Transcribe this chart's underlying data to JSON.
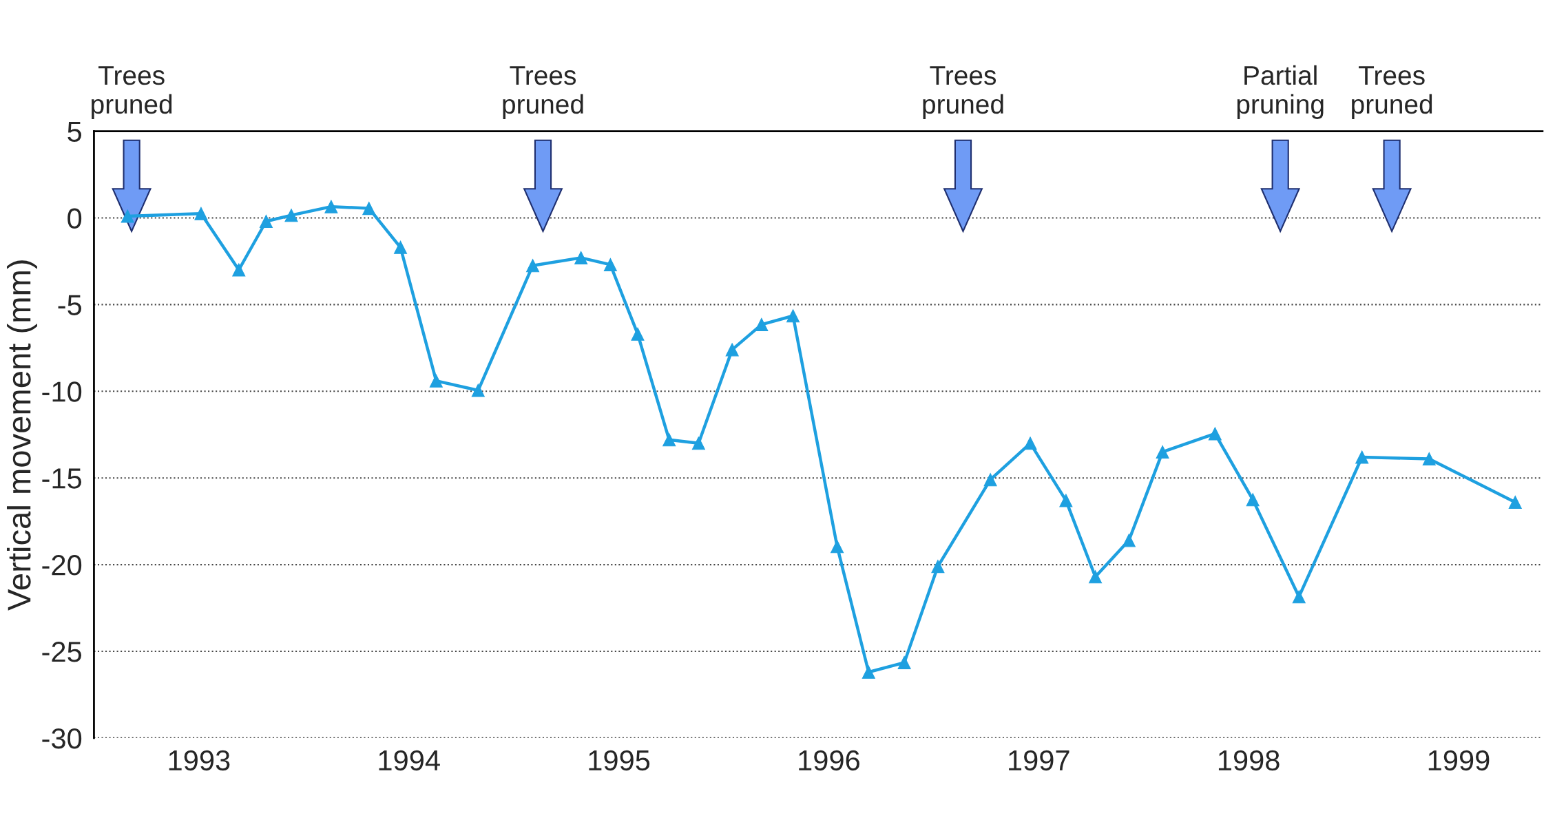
{
  "chart_data": {
    "type": "line",
    "ylabel": "Vertical movement (mm)",
    "xlim": [
      1993,
      1999.9
    ],
    "xticks": [
      {
        "value": 1993.5,
        "label": "1993"
      },
      {
        "value": 1994.5,
        "label": "1994"
      },
      {
        "value": 1995.5,
        "label": "1995"
      },
      {
        "value": 1996.5,
        "label": "1996"
      },
      {
        "value": 1997.5,
        "label": "1997"
      },
      {
        "value": 1998.5,
        "label": "1998"
      },
      {
        "value": 1999.5,
        "label": "1999"
      }
    ],
    "ylim": [
      -30,
      5
    ],
    "yticks": [
      -30,
      -25,
      -20,
      -15,
      -10,
      -5,
      0,
      5
    ],
    "grid": "y",
    "marker": "triangle",
    "line_style": "solid",
    "series": [
      {
        "color": "#1ea0e0",
        "x": [
          1993.16,
          1993.51,
          1993.69,
          1993.82,
          1993.94,
          1994.13,
          1994.31,
          1994.46,
          1994.63,
          1994.83,
          1995.09,
          1995.32,
          1995.46,
          1995.59,
          1995.74,
          1995.88,
          1996.04,
          1996.18,
          1996.33,
          1996.54,
          1996.69,
          1996.86,
          1997.02,
          1997.27,
          1997.46,
          1997.63,
          1997.77,
          1997.93,
          1998.09,
          1998.34,
          1998.52,
          1998.74,
          1999.04,
          1999.36,
          1999.77
        ],
        "values": [
          0.1,
          0.25,
          -3.0,
          -0.2,
          0.15,
          0.65,
          0.55,
          -1.7,
          -9.4,
          -9.95,
          -2.75,
          -2.3,
          -2.7,
          -6.7,
          -12.8,
          -13.0,
          -7.6,
          -6.15,
          -5.65,
          -18.95,
          -26.2,
          -25.65,
          -20.1,
          -15.1,
          -13.0,
          -16.3,
          -20.7,
          -18.6,
          -13.5,
          -12.45,
          -16.25,
          -21.85,
          -13.8,
          -13.9,
          -16.4
        ]
      }
    ],
    "annotations": [
      "Trees\npruned",
      "Trees\npruned",
      "Trees\npruned",
      "Partial\npruning",
      "Trees\npruned"
    ]
  }
}
